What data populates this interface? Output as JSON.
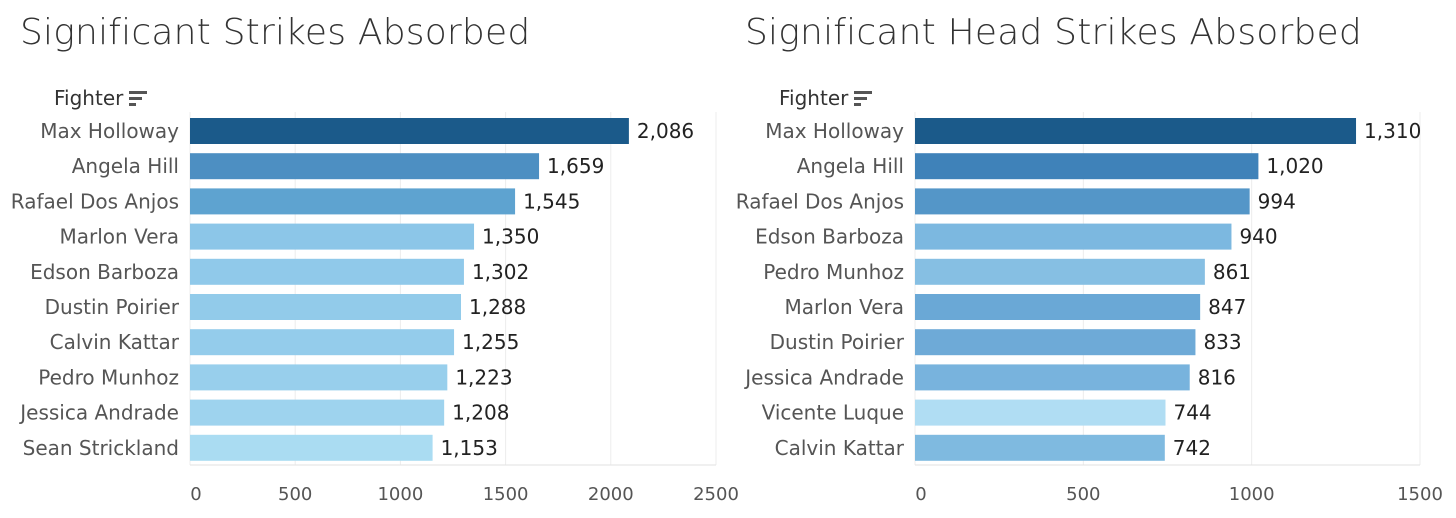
{
  "chart_data": [
    {
      "type": "bar",
      "orientation": "horizontal",
      "title": "Significant Strikes Absorbed",
      "ylabel": "Fighter",
      "xlabel": "",
      "categories": [
        "Max Holloway",
        "Angela Hill",
        "Rafael Dos Anjos",
        "Marlon Vera",
        "Edson Barboza",
        "Dustin Poirier",
        "Calvin Kattar",
        "Pedro Munhoz",
        "Jessica Andrade",
        "Sean Strickland"
      ],
      "values": [
        2086,
        1659,
        1545,
        1350,
        1302,
        1288,
        1255,
        1223,
        1208,
        1153
      ],
      "value_labels": [
        "2,086",
        "1,659",
        "1,545",
        "1,350",
        "1,302",
        "1,288",
        "1,255",
        "1,223",
        "1,208",
        "1,153"
      ],
      "xlim": [
        0,
        2500
      ],
      "xticks": [
        0,
        500,
        1000,
        1500,
        2000,
        2500
      ],
      "xtick_labels": [
        "0",
        "500",
        "1000",
        "1500",
        "2000",
        "2500"
      ],
      "colors": [
        "#1b5a8a",
        "#4d8fc2",
        "#5ea3d0",
        "#8cc6e8",
        "#90c9ea",
        "#92cbea",
        "#94cceb",
        "#98cfec",
        "#9ed3ee",
        "#aadcf2"
      ],
      "grid": true
    },
    {
      "type": "bar",
      "orientation": "horizontal",
      "title": "Significant Head Strikes Absorbed",
      "ylabel": "Fighter",
      "xlabel": "",
      "categories": [
        "Max Holloway",
        "Angela Hill",
        "Rafael Dos Anjos",
        "Edson Barboza",
        "Pedro Munhoz",
        "Marlon Vera",
        "Dustin Poirier",
        "Jessica Andrade",
        "Vicente Luque",
        "Calvin Kattar"
      ],
      "values": [
        1310,
        1020,
        994,
        940,
        861,
        847,
        833,
        816,
        744,
        742
      ],
      "value_labels": [
        "1,310",
        "1,020",
        "994",
        "940",
        "861",
        "847",
        "833",
        "816",
        "744",
        "742"
      ],
      "xlim": [
        0,
        1500
      ],
      "xticks": [
        0,
        500,
        1000,
        1500
      ],
      "xtick_labels": [
        "0",
        "500",
        "1000",
        "1500"
      ],
      "colors": [
        "#1b5a8a",
        "#3f82b9",
        "#5496c8",
        "#7cb8e0",
        "#86bfe3",
        "#6aa8d6",
        "#6eaad7",
        "#78b3dd",
        "#b0ddf3",
        "#7fbae0"
      ],
      "grid": true
    }
  ]
}
